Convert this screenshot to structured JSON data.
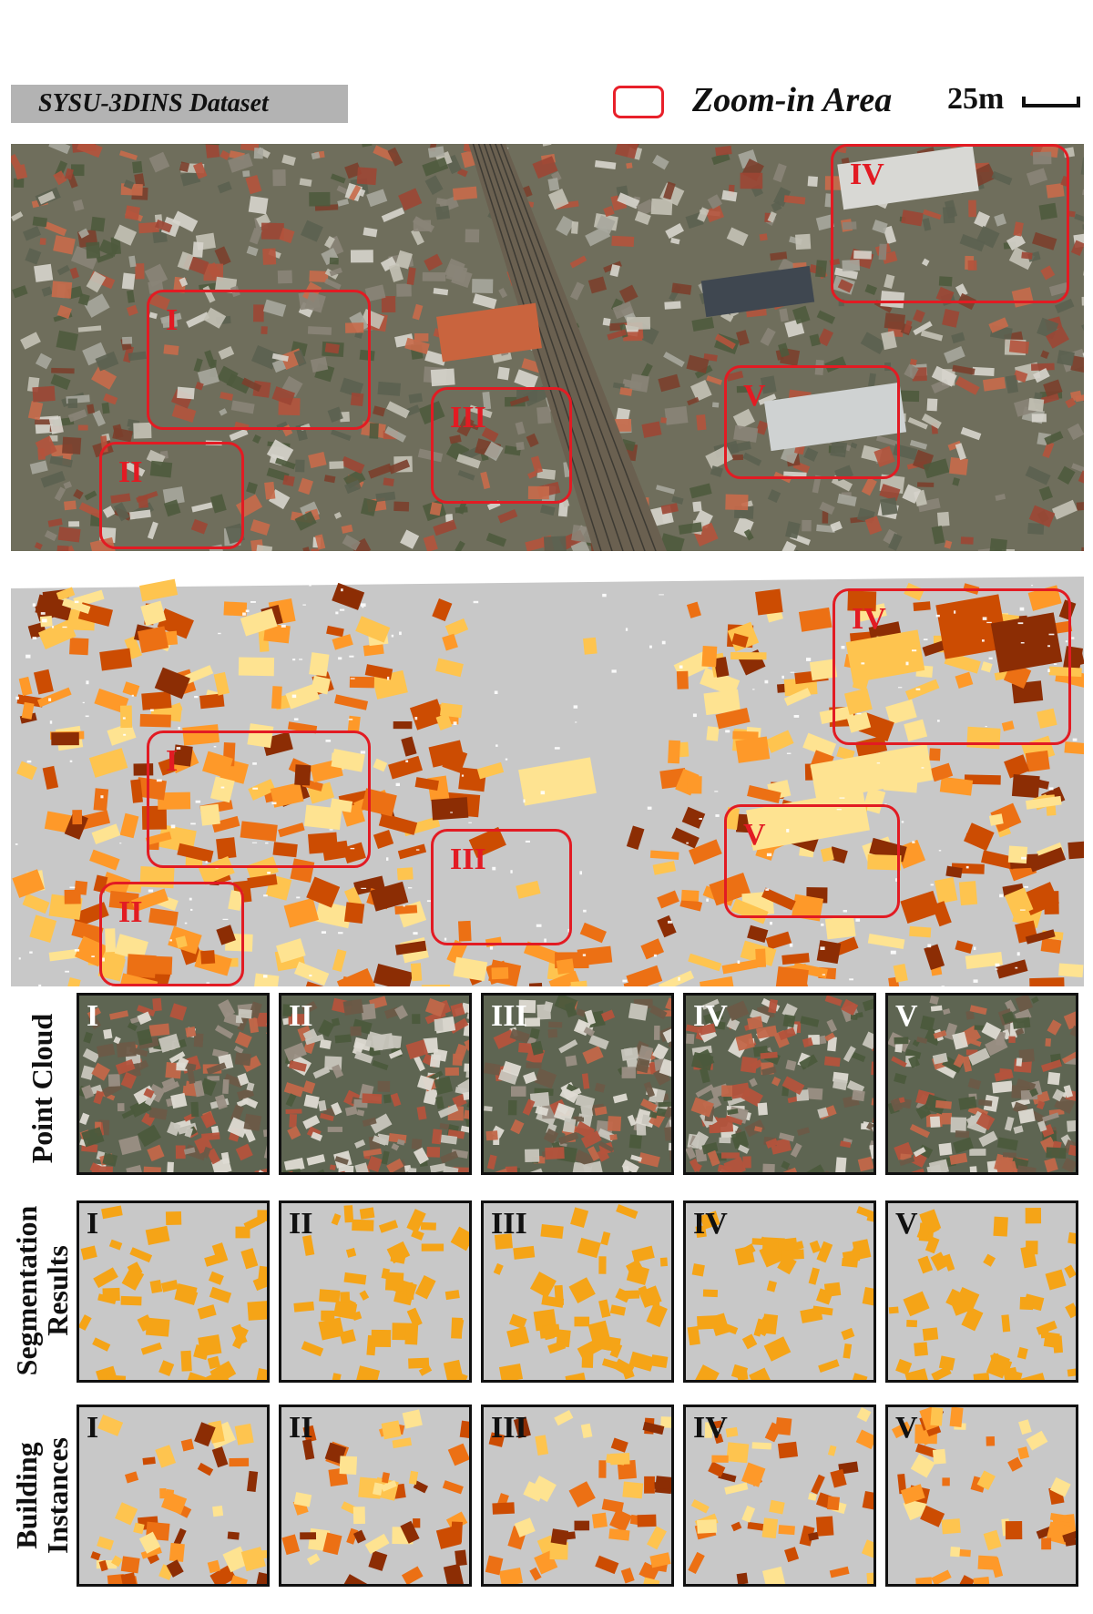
{
  "header": {
    "dataset_label": "SYSU-3DINS Dataset",
    "legend_label": "Zoom-in Area",
    "scale_label": "25m"
  },
  "zoom_areas": [
    "I",
    "II",
    "III",
    "IV",
    "V"
  ],
  "rows": {
    "point_cloud": "Point Cloud",
    "segmentation_1": "Segmentation",
    "segmentation_2": "Results",
    "instances_1": "Building",
    "instances_2": "Instances"
  },
  "colors": {
    "zoom_border": "#e21b23",
    "ground_gray": "#c8c8c8",
    "segmentation_orange": "#f5a417",
    "instance_palette": [
      "#8c2d04",
      "#cc4c02",
      "#ec7014",
      "#fe9929",
      "#fec44f",
      "#fee391"
    ]
  }
}
